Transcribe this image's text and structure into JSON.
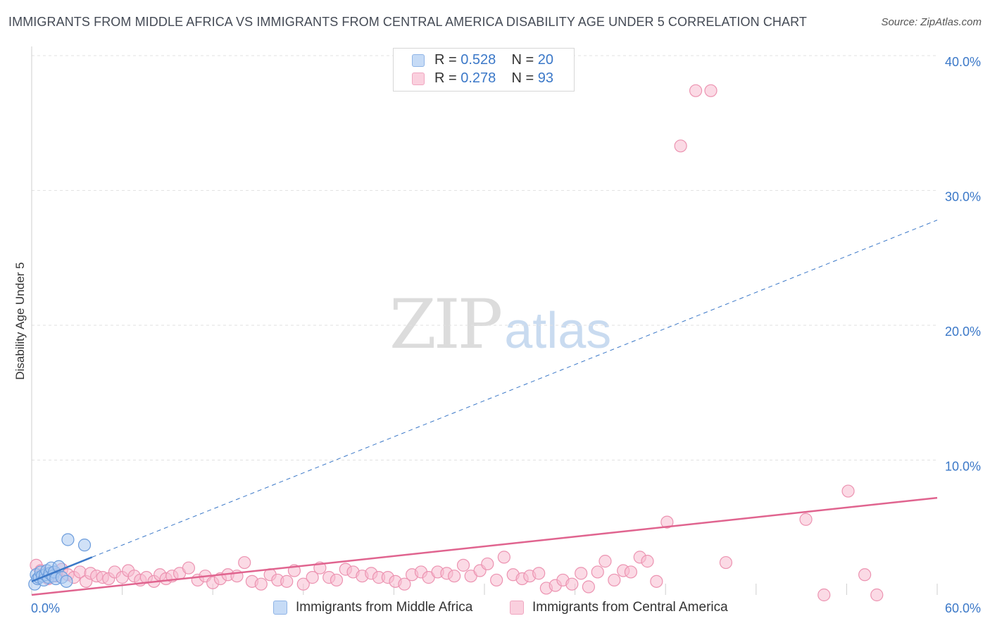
{
  "title": "IMMIGRANTS FROM MIDDLE AFRICA VS IMMIGRANTS FROM CENTRAL AMERICA DISABILITY AGE UNDER 5 CORRELATION CHART",
  "source": "Source: ZipAtlas.com",
  "watermark": {
    "zip": "ZIP",
    "atlas": "atlas"
  },
  "legend": {
    "series1": {
      "r_label": "R = ",
      "r_value": "0.528",
      "n_label": "N = ",
      "n_value": "20"
    },
    "series2": {
      "r_label": "R = ",
      "r_value": "0.278",
      "n_label": "N = ",
      "n_value": "93"
    }
  },
  "colors": {
    "blue_fill": "#a9c8f0",
    "blue_stroke": "#6d9ddc",
    "blue_line": "#3b78c8",
    "pink_fill": "#f7bcd0",
    "pink_stroke": "#ec93b1",
    "pink_line": "#e0648f",
    "axis_label": "#3b78c8",
    "grid": "#e2e2e2"
  },
  "chart_data": {
    "type": "scatter",
    "title": "IMMIGRANTS FROM MIDDLE AFRICA VS IMMIGRANTS FROM CENTRAL AMERICA DISABILITY AGE UNDER 5 CORRELATION CHART",
    "xlabel": "",
    "ylabel": "Disability Age Under 5",
    "xlim": [
      0,
      60
    ],
    "ylim": [
      0,
      40
    ],
    "x_tick_labels": [
      "0.0%",
      "60.0%"
    ],
    "y_ticks": [
      10,
      20,
      30,
      40
    ],
    "y_tick_labels": [
      "10.0%",
      "20.0%",
      "30.0%",
      "40.0%"
    ],
    "grid": true,
    "series": [
      {
        "name": "Immigrants from Middle Africa",
        "color": "#a9c8f0",
        "x": [
          0.2,
          0.3,
          0.4,
          0.5,
          0.6,
          0.7,
          0.8,
          0.9,
          1.0,
          1.1,
          1.2,
          1.3,
          1.4,
          1.5,
          1.6,
          1.8,
          2.0,
          2.3,
          2.4,
          3.5
        ],
        "y": [
          0.8,
          1.5,
          1.2,
          1.3,
          1.7,
          1.4,
          1.1,
          1.5,
          1.8,
          1.3,
          1.6,
          2.0,
          1.4,
          1.7,
          1.2,
          2.1,
          1.3,
          1.0,
          4.1,
          3.7
        ],
        "trend": {
          "solid": [
            [
              0,
              1.0
            ],
            [
              4,
              2.8
            ]
          ],
          "dashed": [
            [
              4,
              2.8
            ],
            [
              60,
              27.8
            ]
          ]
        }
      },
      {
        "name": "Immigrants from Central America",
        "color": "#f7bcd0",
        "x": [
          0.3,
          0.6,
          0.9,
          1.1,
          1.3,
          1.6,
          2.0,
          2.4,
          2.8,
          3.2,
          3.6,
          3.9,
          4.3,
          4.7,
          5.1,
          5.5,
          6.0,
          6.4,
          6.8,
          7.2,
          7.6,
          8.1,
          8.5,
          8.9,
          9.3,
          9.8,
          10.4,
          11.0,
          11.5,
          12.0,
          12.5,
          13.0,
          13.6,
          14.1,
          14.6,
          15.2,
          15.8,
          16.3,
          16.9,
          17.4,
          18.0,
          18.6,
          19.1,
          19.7,
          20.2,
          20.8,
          21.3,
          21.9,
          22.5,
          23.0,
          23.6,
          24.1,
          24.7,
          25.2,
          25.8,
          26.3,
          26.9,
          27.5,
          28.0,
          28.6,
          29.1,
          29.7,
          30.2,
          30.8,
          31.3,
          31.9,
          32.5,
          33.0,
          33.6,
          34.1,
          34.7,
          35.2,
          35.8,
          36.4,
          36.9,
          37.5,
          38.0,
          38.6,
          39.2,
          39.7,
          40.3,
          40.8,
          41.4,
          42.1,
          43.0,
          44.0,
          45.0,
          46.0,
          51.3,
          52.5,
          54.1,
          55.2,
          56.0
        ],
        "y": [
          2.2,
          1.8,
          1.5,
          1.2,
          1.6,
          1.4,
          1.9,
          1.5,
          1.3,
          1.7,
          1.0,
          1.6,
          1.4,
          1.3,
          1.2,
          1.7,
          1.3,
          1.8,
          1.4,
          1.1,
          1.3,
          1.0,
          1.5,
          1.2,
          1.4,
          1.6,
          2.0,
          1.1,
          1.4,
          0.9,
          1.2,
          1.5,
          1.4,
          2.4,
          1.0,
          0.8,
          1.5,
          1.1,
          1.0,
          1.8,
          0.8,
          1.3,
          2.0,
          1.3,
          1.1,
          1.9,
          1.7,
          1.4,
          1.6,
          1.3,
          1.3,
          1.0,
          0.8,
          1.5,
          1.7,
          1.3,
          1.7,
          1.6,
          1.4,
          2.2,
          1.4,
          1.8,
          2.3,
          1.1,
          2.8,
          1.5,
          1.2,
          1.4,
          1.6,
          0.5,
          0.7,
          1.1,
          0.8,
          1.6,
          0.6,
          1.7,
          2.5,
          1.1,
          1.8,
          1.7,
          2.8,
          2.5,
          1.0,
          5.4,
          33.3,
          37.4,
          37.4,
          2.4,
          5.6,
          0.0,
          7.7,
          1.5,
          0.0
        ],
        "trend": {
          "solid": [
            [
              0,
              0.0
            ],
            [
              60,
              7.2
            ]
          ]
        }
      }
    ]
  },
  "legend_bottom": {
    "series1_label": "Immigrants from Middle Africa",
    "series2_label": "Immigrants from Central America"
  }
}
